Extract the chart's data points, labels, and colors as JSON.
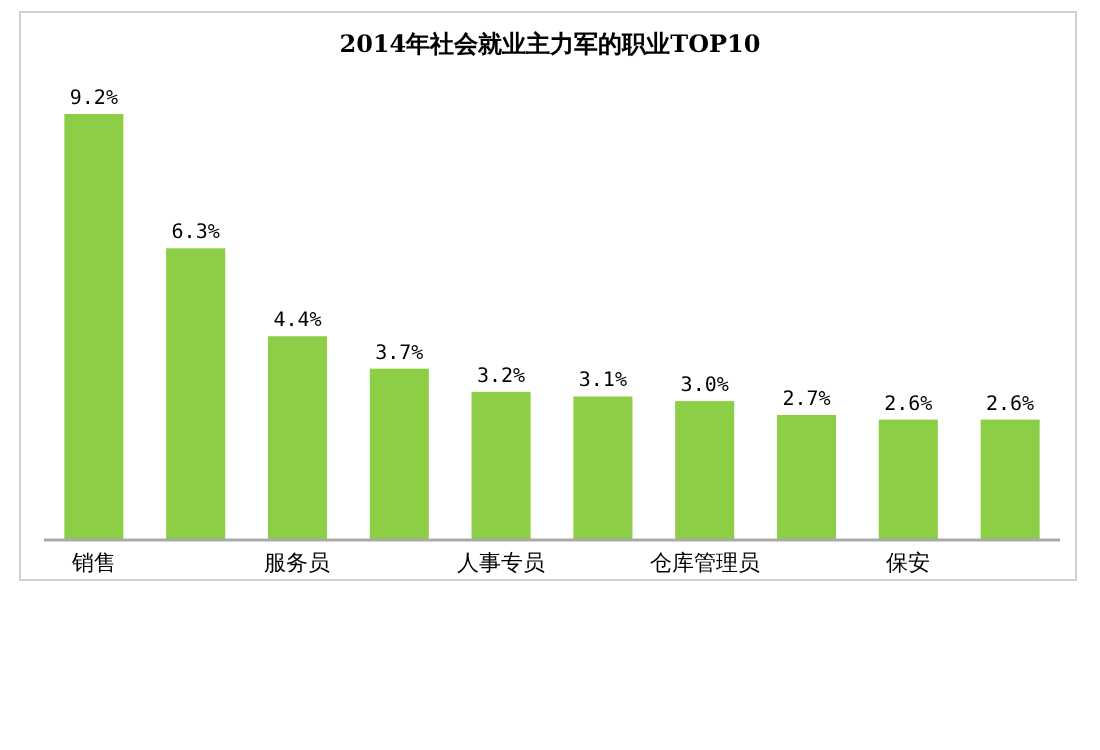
{
  "chart_data": {
    "type": "bar",
    "title": "2014年社会就业主力军的职业TOP10",
    "categories": [
      "销售",
      null,
      "服务员",
      null,
      "人事专员",
      null,
      "仓库管理员",
      null,
      "保安",
      null
    ],
    "values": [
      9.2,
      6.3,
      4.4,
      3.7,
      3.2,
      3.1,
      3.0,
      2.7,
      2.6,
      2.6
    ],
    "value_labels": [
      "9.2%",
      "6.3%",
      "4.4%",
      "3.7%",
      "3.2%",
      "3.1%",
      "3.0%",
      "2.7%",
      "2.6%",
      "2.6%"
    ],
    "color": "#8cce45"
  }
}
